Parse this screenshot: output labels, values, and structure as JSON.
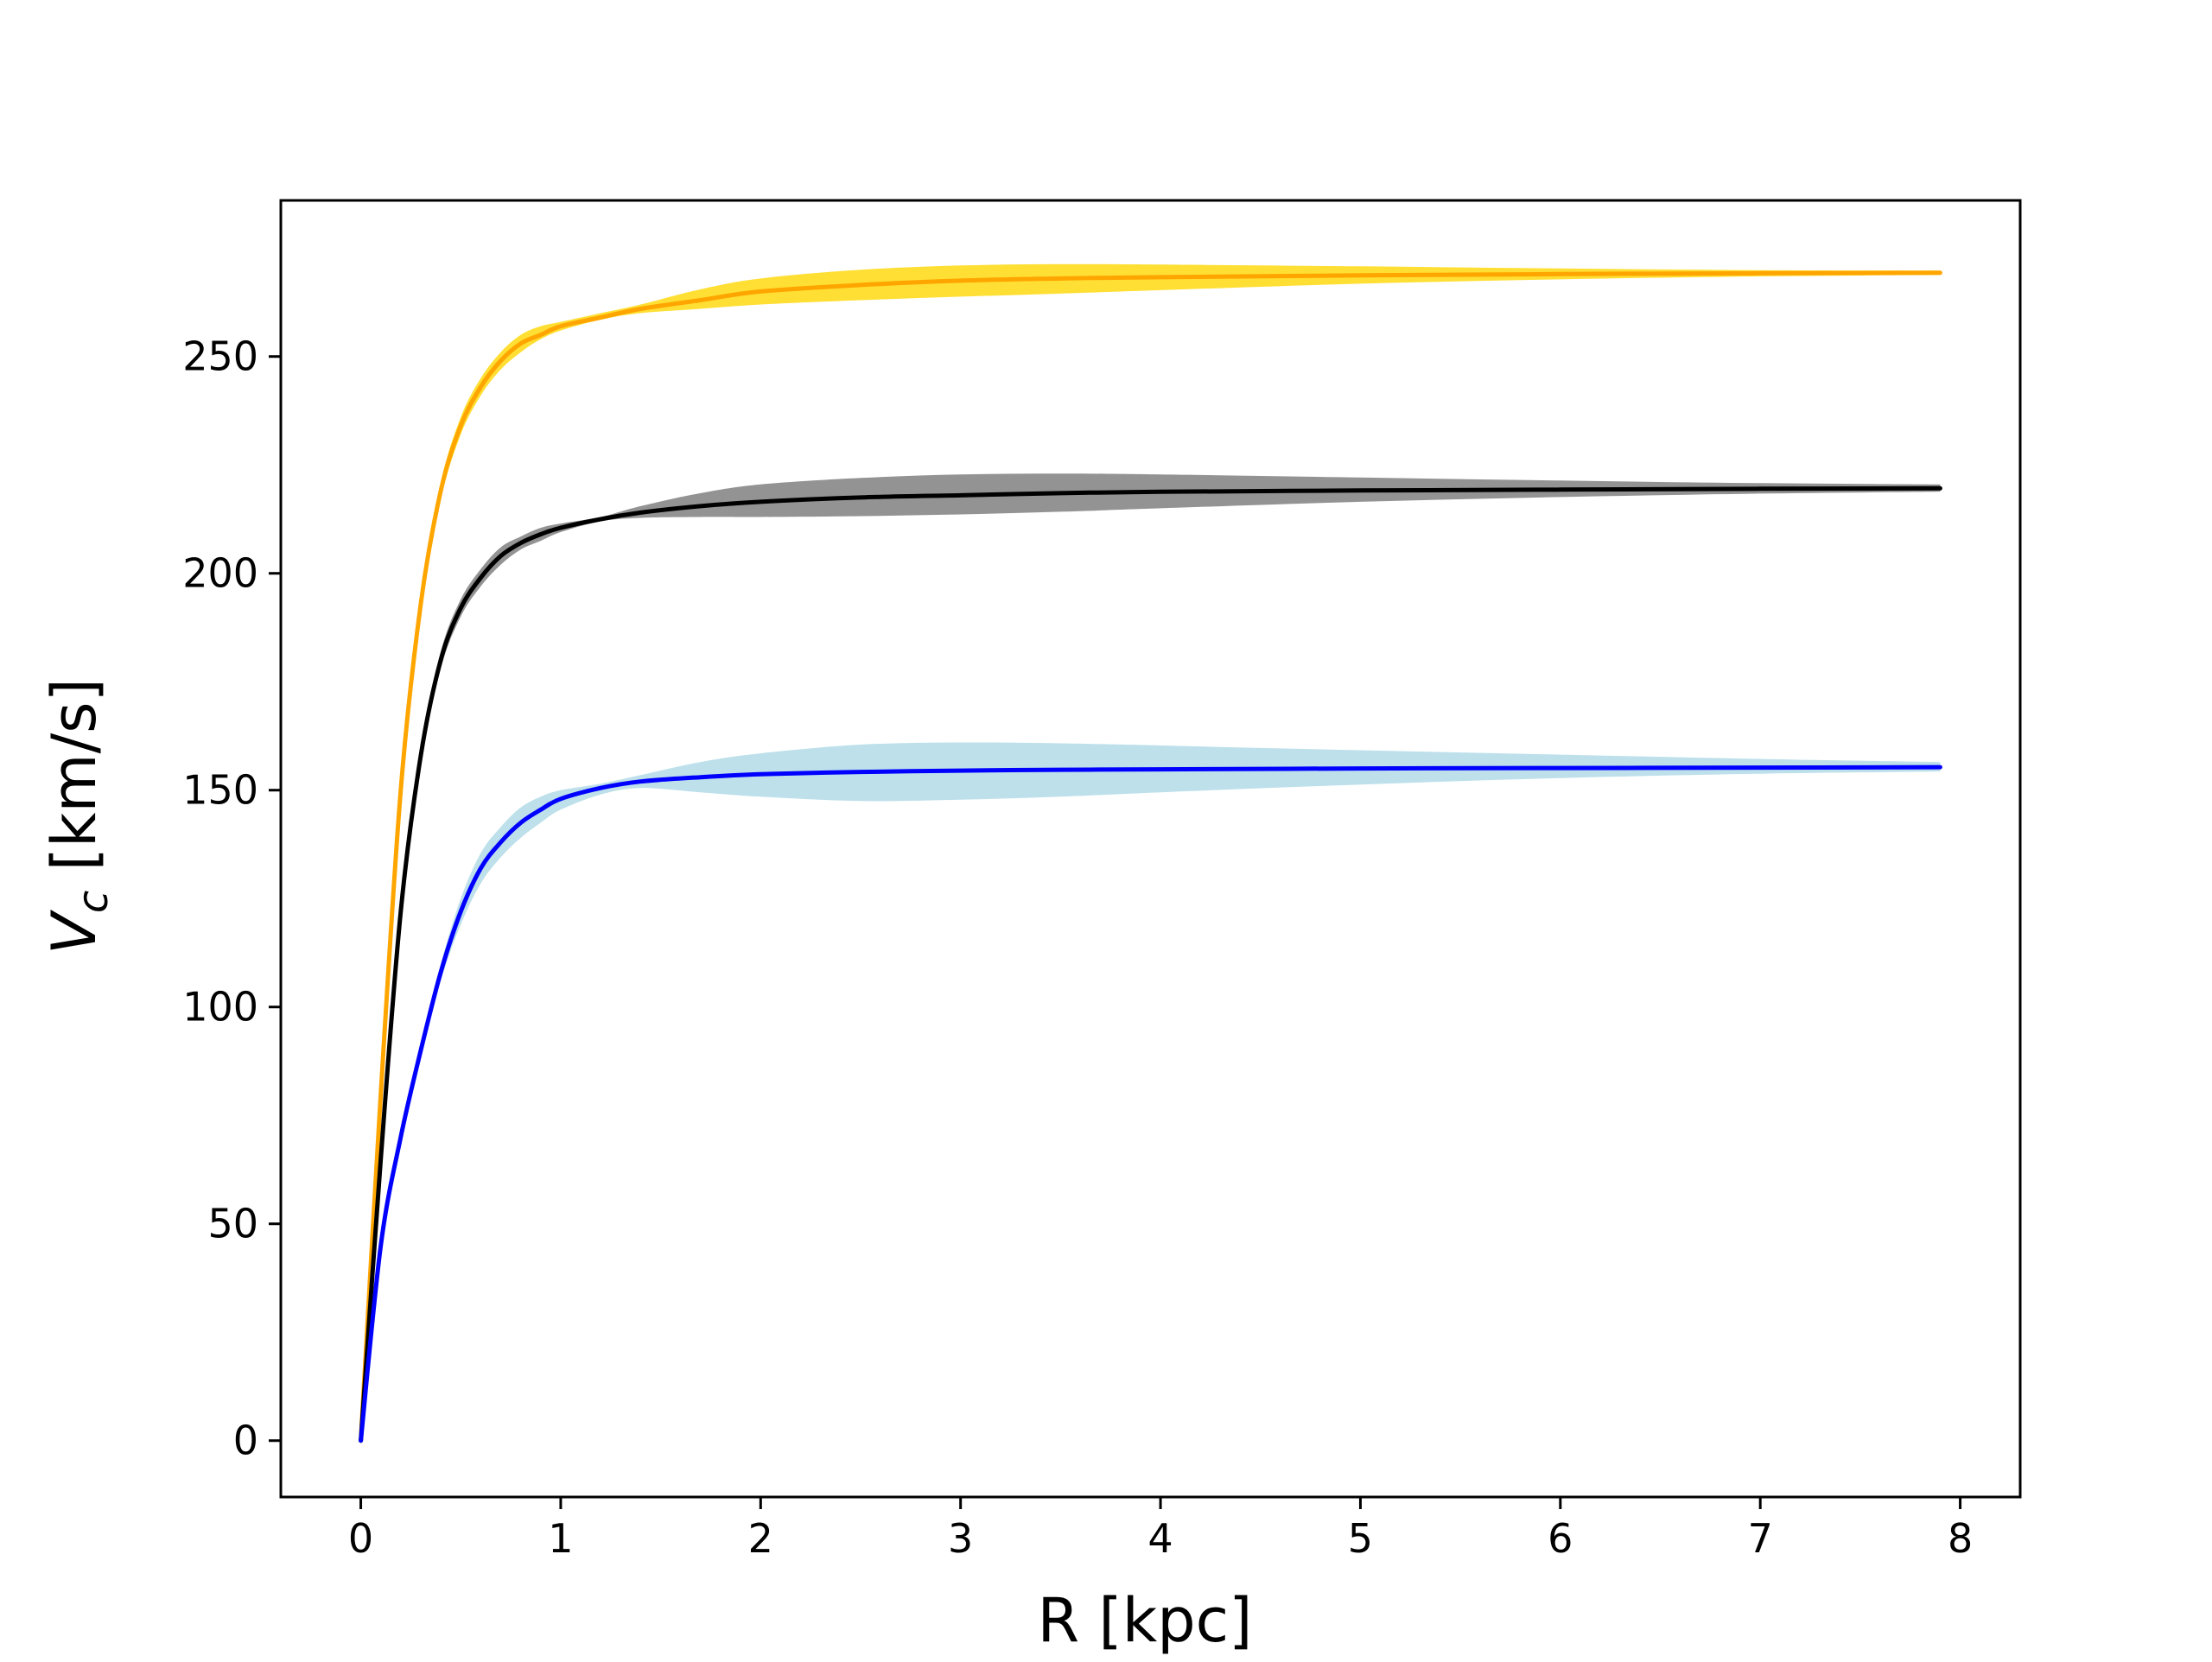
{
  "chart_data": {
    "type": "line",
    "xlabel": "R [kpc]",
    "ylabel_main": "V",
    "ylabel_sub": "c",
    "ylabel_rest": " [km/s]",
    "xlim": [
      -0.4,
      8.3
    ],
    "ylim": [
      -13,
      286
    ],
    "xticks": [
      0,
      1,
      2,
      3,
      4,
      5,
      6,
      7,
      8
    ],
    "yticks": [
      0,
      50,
      100,
      150,
      200,
      250
    ],
    "grid": false,
    "legend": false,
    "colors": {
      "orange_line": "#ffa500",
      "orange_band": "#ffd700",
      "black_line": "#000000",
      "black_band": "#808080",
      "blue_line": "#0000ff",
      "blue_band": "#add8e6"
    },
    "series": [
      {
        "color": "orange",
        "x": [
          0,
          0.1,
          0.2,
          0.3,
          0.4,
          0.5,
          0.6,
          0.7,
          0.8,
          0.9,
          1.0,
          1.2,
          1.4,
          1.7,
          2.0,
          2.5,
          3.0,
          3.5,
          4.0,
          5.0,
          6.0,
          7.0,
          7.9
        ],
        "y": [
          0,
          80,
          150,
          193,
          219,
          234,
          243,
          249,
          253,
          255,
          257,
          259,
          261,
          263,
          265,
          266.5,
          267.5,
          268,
          268.3,
          268.7,
          269,
          269.2,
          269.3
        ],
        "lower": [
          0,
          78,
          148,
          191,
          217,
          232,
          241,
          247,
          251,
          254,
          256,
          258.5,
          260,
          261,
          262,
          263,
          263.8,
          264.5,
          265.3,
          266.8,
          267.8,
          268.5,
          268.8
        ],
        "upper": [
          0,
          82,
          152,
          195,
          221,
          236,
          245,
          251,
          255,
          257,
          258,
          260,
          262,
          265.5,
          268,
          270,
          271,
          271.3,
          271.2,
          270.8,
          270.3,
          269.9,
          269.8
        ]
      },
      {
        "color": "black",
        "x": [
          0,
          0.1,
          0.2,
          0.3,
          0.4,
          0.5,
          0.6,
          0.7,
          0.8,
          0.9,
          1.0,
          1.2,
          1.4,
          1.7,
          2.0,
          2.5,
          3.0,
          3.5,
          4.0,
          5.0,
          6.0,
          7.0,
          7.9
        ],
        "y": [
          0,
          65,
          122,
          158,
          180,
          192,
          199,
          204,
          207,
          209,
          210.5,
          212.5,
          214,
          215.5,
          216.5,
          217.5,
          218,
          218.5,
          218.8,
          219.1,
          219.3,
          219.5,
          219.6
        ],
        "lower": [
          0,
          63,
          120,
          156,
          178,
          190,
          197,
          202,
          205.5,
          207.5,
          209.5,
          212,
          212.8,
          213,
          213,
          213.2,
          213.6,
          214.2,
          215,
          216.5,
          217.6,
          218.4,
          218.8
        ],
        "upper": [
          0,
          67,
          124,
          160,
          182,
          194,
          201,
          206,
          208.5,
          210.5,
          211.5,
          213,
          215.5,
          218.5,
          220.5,
          222,
          222.8,
          223,
          222.8,
          222.1,
          221.4,
          220.8,
          220.5
        ]
      },
      {
        "color": "blue",
        "x": [
          0,
          0.1,
          0.2,
          0.3,
          0.4,
          0.5,
          0.6,
          0.7,
          0.8,
          0.9,
          1.0,
          1.2,
          1.4,
          1.7,
          2.0,
          2.5,
          3.0,
          3.5,
          4.0,
          5.0,
          6.0,
          7.0,
          7.9
        ],
        "y": [
          0,
          45,
          70,
          90,
          108,
          122,
          132,
          138,
          142.5,
          145.5,
          148,
          150.5,
          152,
          153,
          153.7,
          154.2,
          154.5,
          154.7,
          154.8,
          155,
          155.1,
          155.2,
          155.3
        ],
        "lower": [
          0,
          43,
          68,
          88,
          106,
          119,
          128.5,
          134.5,
          139,
          142.5,
          145.5,
          149,
          150.5,
          149.5,
          148.5,
          147.5,
          147.8,
          148.5,
          149.5,
          151.3,
          152.8,
          153.8,
          154.3
        ],
        "upper": [
          0,
          47,
          72,
          92,
          110,
          125,
          135.5,
          141.5,
          146,
          148.5,
          150,
          151.5,
          153.5,
          156.5,
          158.5,
          160.5,
          161,
          160.8,
          160.3,
          159.2,
          158.2,
          157.2,
          156.5
        ]
      }
    ]
  }
}
